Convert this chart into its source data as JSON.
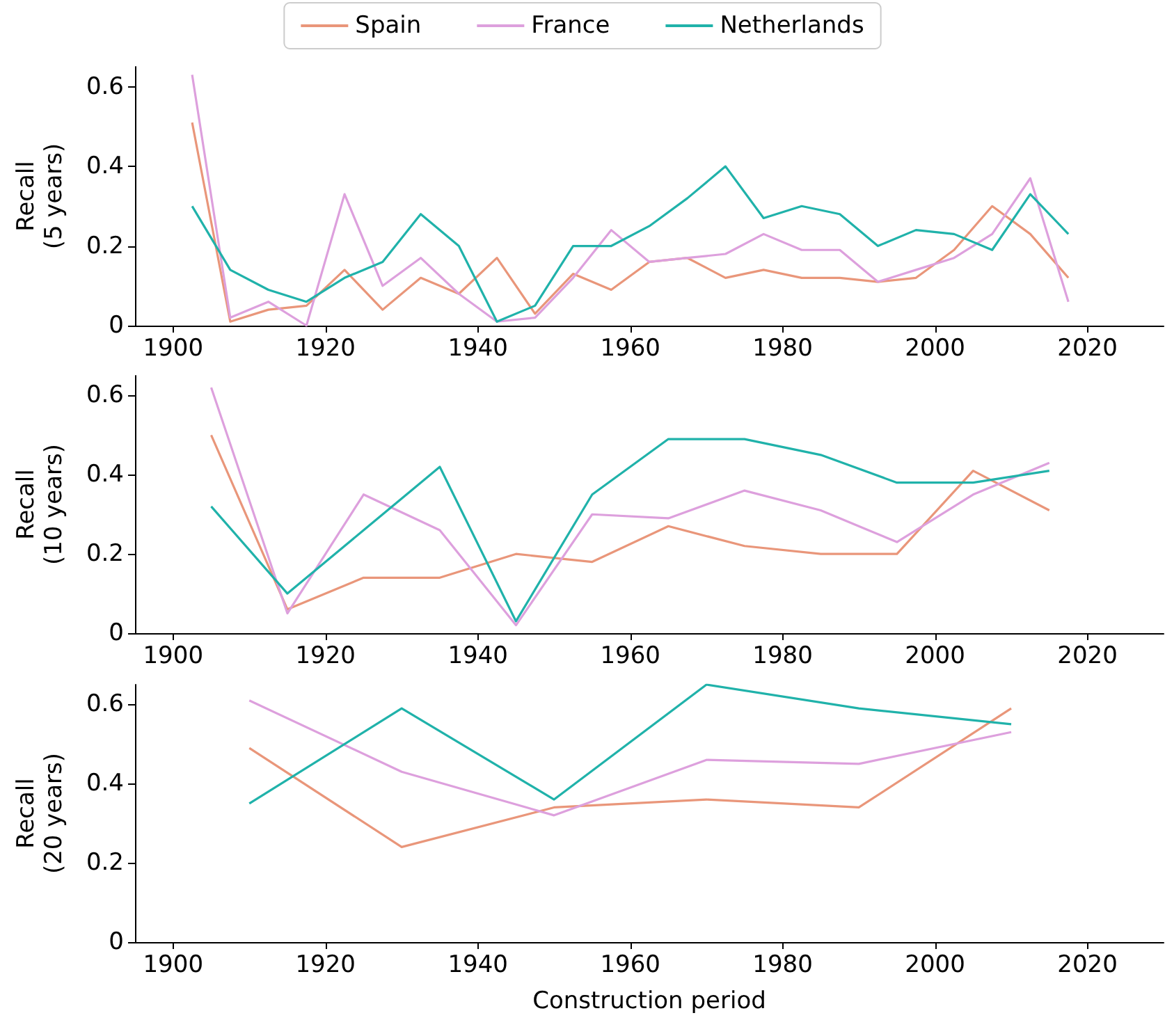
{
  "chart_data": [
    {
      "type": "line",
      "ylabel": "Recall\n(5 years)",
      "legend": "top",
      "grid": false,
      "xlim": [
        1895,
        2030
      ],
      "xticks": [
        1900,
        1920,
        1940,
        1960,
        1980,
        2000,
        2020
      ],
      "ylim": [
        0,
        0.65
      ],
      "yticks": [
        0,
        0.2,
        0.4,
        0.6
      ],
      "x": [
        1902.5,
        1907.5,
        1912.5,
        1917.5,
        1922.5,
        1927.5,
        1932.5,
        1937.5,
        1942.5,
        1947.5,
        1952.5,
        1957.5,
        1962.5,
        1967.5,
        1972.5,
        1977.5,
        1982.5,
        1987.5,
        1992.5,
        1997.5,
        2002.5,
        2007.5,
        2012.5,
        2017.5
      ],
      "series": [
        {
          "name": "Spain",
          "color": "#e9967a",
          "values": [
            0.51,
            0.01,
            0.04,
            0.05,
            0.14,
            0.04,
            0.12,
            0.08,
            0.17,
            0.03,
            0.13,
            0.09,
            0.16,
            0.17,
            0.12,
            0.14,
            0.12,
            0.12,
            0.11,
            0.12,
            0.19,
            0.3,
            0.23,
            0.12
          ]
        },
        {
          "name": "France",
          "color": "#dda0dd",
          "values": [
            0.63,
            0.02,
            0.06,
            0.0,
            0.33,
            0.1,
            0.17,
            0.08,
            0.01,
            0.02,
            0.12,
            0.24,
            0.16,
            0.17,
            0.18,
            0.23,
            0.19,
            0.19,
            0.11,
            0.14,
            0.17,
            0.23,
            0.37,
            0.06
          ]
        },
        {
          "name": "Netherlands",
          "color": "#20b2aa",
          "values": [
            0.3,
            0.14,
            0.09,
            0.06,
            0.12,
            0.16,
            0.28,
            0.2,
            0.01,
            0.05,
            0.2,
            0.2,
            0.25,
            0.32,
            0.4,
            0.27,
            0.3,
            0.28,
            0.2,
            0.24,
            0.23,
            0.19,
            0.33,
            0.23
          ]
        }
      ]
    },
    {
      "type": "line",
      "ylabel": "Recall\n(10 years)",
      "grid": false,
      "xlim": [
        1895,
        2030
      ],
      "xticks": [
        1900,
        1920,
        1940,
        1960,
        1980,
        2000,
        2020
      ],
      "ylim": [
        0,
        0.65
      ],
      "yticks": [
        0,
        0.2,
        0.4,
        0.6
      ],
      "x": [
        1905,
        1915,
        1925,
        1935,
        1945,
        1955,
        1965,
        1975,
        1985,
        1995,
        2005,
        2015
      ],
      "series": [
        {
          "color": "#e9967a",
          "values": [
            0.5,
            0.06,
            0.14,
            0.14,
            0.2,
            0.18,
            0.27,
            0.22,
            0.2,
            0.2,
            0.41,
            0.31
          ]
        },
        {
          "color": "#dda0dd",
          "values": [
            0.62,
            0.05,
            0.35,
            0.26,
            0.02,
            0.3,
            0.29,
            0.36,
            0.31,
            0.23,
            0.35,
            0.43
          ]
        },
        {
          "color": "#20b2aa",
          "values": [
            0.32,
            0.1,
            0.26,
            0.42,
            0.03,
            0.35,
            0.49,
            0.49,
            0.45,
            0.38,
            0.38,
            0.41
          ]
        }
      ]
    },
    {
      "type": "line",
      "ylabel": "Recall\n(20 years)",
      "xlabel": "Construction period",
      "grid": false,
      "xlim": [
        1895,
        2030
      ],
      "xticks": [
        1900,
        1920,
        1940,
        1960,
        1980,
        2000,
        2020
      ],
      "ylim": [
        0,
        0.65
      ],
      "yticks": [
        0,
        0.2,
        0.4,
        0.6
      ],
      "x": [
        1910,
        1930,
        1950,
        1970,
        1990,
        2010
      ],
      "series": [
        {
          "color": "#e9967a",
          "values": [
            0.49,
            0.24,
            0.34,
            0.36,
            0.34,
            0.59
          ]
        },
        {
          "color": "#dda0dd",
          "values": [
            0.61,
            0.43,
            0.32,
            0.46,
            0.45,
            0.53
          ]
        },
        {
          "color": "#20b2aa",
          "values": [
            0.35,
            0.59,
            0.36,
            0.65,
            0.59,
            0.55
          ]
        }
      ]
    }
  ]
}
